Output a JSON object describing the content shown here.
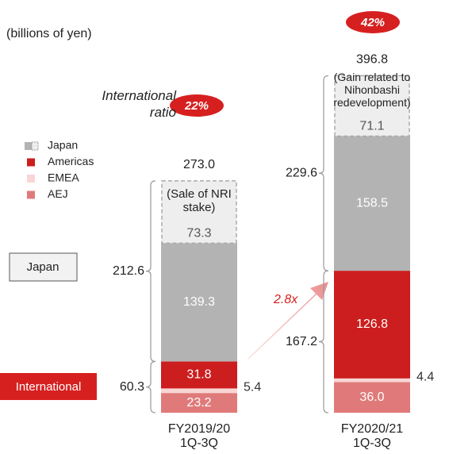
{
  "unit_label": "(billions of yen)",
  "chart_data": {
    "type": "bar",
    "stacked": true,
    "categories": [
      "FY2019/20 1Q-3Q",
      "FY2020/21 1Q-3Q"
    ],
    "series": [
      {
        "name": "AEJ",
        "color": "#e07a7a",
        "values": [
          23.2,
          36.0
        ],
        "value_labels": [
          "23.2",
          "36.0"
        ]
      },
      {
        "name": "EMEA",
        "color": "#f9d5d5",
        "values": [
          5.4,
          4.4
        ]
      },
      {
        "name": "Americas",
        "color": "#cc1e1e",
        "values": [
          31.8,
          126.8
        ]
      },
      {
        "name": "Japan",
        "color": "#b3b3b3",
        "values": [
          139.3,
          158.5
        ]
      }
    ],
    "one_off": {
      "color": "#eeeeee",
      "values": [
        73.3,
        71.1
      ],
      "notes": [
        "(Sale of NRI stake)",
        "(Gain related to Nihonbashi redevelopment)"
      ]
    },
    "totals": {
      "values": [
        273.0,
        396.8
      ],
      "value_labels": [
        "273.0",
        "396.8"
      ]
    },
    "segments": {
      "japan": {
        "label": "Japan",
        "values": [
          212.6,
          229.6
        ]
      },
      "international": {
        "label": "International",
        "values": [
          60.3,
          167.2
        ]
      }
    },
    "international_ratio": {
      "label": "International ratio",
      "values": [
        22,
        42
      ],
      "value_labels": [
        "22%",
        "42%"
      ]
    },
    "growth_label": "2.8x"
  }
}
